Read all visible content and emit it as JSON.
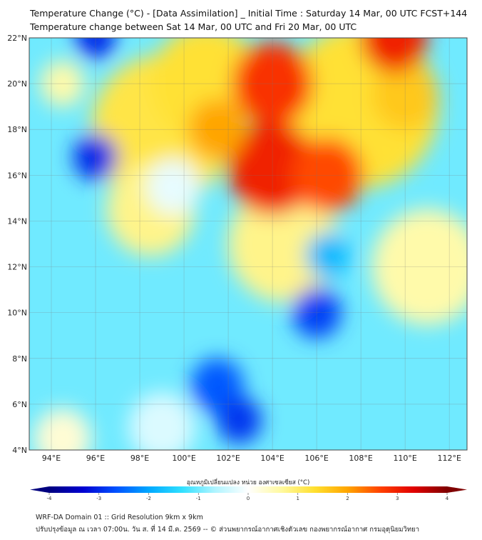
{
  "header": {
    "title": "Temperature Change (°C) - [Data Assimilation] _ Initial Time : Saturday 14 Mar, 00 UTC FCST+144",
    "subtitle": "Temperature change between Sat 14 Mar, 00 UTC and Fri 20 Mar, 00 UTC"
  },
  "chart_data": {
    "type": "heatmap",
    "title": "Temperature Change (°C) - [Data Assimilation] _ Initial Time : Saturday 14 Mar, 00 UTC FCST+144",
    "xlabel": "",
    "ylabel": "",
    "xlim": [
      93,
      112.8
    ],
    "ylim": [
      4,
      22
    ],
    "x_ticks": [
      "94°E",
      "96°E",
      "98°E",
      "100°E",
      "102°E",
      "104°E",
      "106°E",
      "108°E",
      "110°E",
      "112°E"
    ],
    "x_tick_values": [
      94,
      96,
      98,
      100,
      102,
      104,
      106,
      108,
      110,
      112
    ],
    "y_ticks": [
      "4°N",
      "6°N",
      "8°N",
      "10°N",
      "12°N",
      "14°N",
      "16°N",
      "18°N",
      "20°N",
      "22°N"
    ],
    "y_tick_values": [
      4,
      6,
      8,
      10,
      12,
      14,
      16,
      18,
      20,
      22
    ],
    "grid": true,
    "background_value": -1.0,
    "features": [
      {
        "lon": 99,
        "lat": 18,
        "value": 1.2,
        "r": 3.2
      },
      {
        "lon": 98.5,
        "lat": 14.5,
        "value": 0.8,
        "r": 2.0
      },
      {
        "lon": 101,
        "lat": 20,
        "value": 1.3,
        "r": 2.5
      },
      {
        "lon": 104.5,
        "lat": 13,
        "value": 0.8,
        "r": 2.5
      },
      {
        "lon": 108,
        "lat": 19,
        "value": 1.3,
        "r": 3.5
      },
      {
        "lon": 111,
        "lat": 12,
        "value": 0.6,
        "r": 2.5
      },
      {
        "lon": 110,
        "lat": 19.5,
        "value": 1.6,
        "r": 1.5
      },
      {
        "lon": 104,
        "lat": 20,
        "value": 2.8,
        "r": 1.8
      },
      {
        "lon": 104,
        "lat": 16.3,
        "value": 3.0,
        "r": 2.0
      },
      {
        "lon": 106.5,
        "lat": 16,
        "value": 2.6,
        "r": 1.6
      },
      {
        "lon": 101.5,
        "lat": 18,
        "value": 2.0,
        "r": 1.3
      },
      {
        "lon": 109.5,
        "lat": 22,
        "value": 3.0,
        "r": 1.5
      },
      {
        "lon": 99.5,
        "lat": 15.5,
        "value": -0.2,
        "r": 1.2
      },
      {
        "lon": 96,
        "lat": 16.8,
        "value": -3.0,
        "r": 1.0
      },
      {
        "lon": 96,
        "lat": 22,
        "value": -3.0,
        "r": 0.9
      },
      {
        "lon": 94.5,
        "lat": 20,
        "value": 0.6,
        "r": 1.0
      },
      {
        "lon": 106,
        "lat": 10,
        "value": -2.8,
        "r": 1.1
      },
      {
        "lon": 106.5,
        "lat": 12.5,
        "value": -1.8,
        "r": 1.0
      },
      {
        "lon": 101.5,
        "lat": 6.8,
        "value": -2.6,
        "r": 1.2
      },
      {
        "lon": 102.5,
        "lat": 5.3,
        "value": -2.9,
        "r": 1.0
      },
      {
        "lon": 99,
        "lat": 5,
        "value": -0.3,
        "r": 1.5
      },
      {
        "lon": 94.5,
        "lat": 4.5,
        "value": 0.3,
        "r": 1.3
      }
    ],
    "colorbar": {
      "label": "อุณหภูมิเปลี่ยนแปลง หน่วย องศาเซลเซียส (°C)",
      "ticks": [
        "-4",
        "-3",
        "-2",
        "-1",
        "0",
        "1",
        "2",
        "3",
        "4"
      ],
      "range": [
        -4,
        4
      ],
      "colors": [
        "#00007f",
        "#0000d0",
        "#0050ff",
        "#00a8ff",
        "#30e0ff",
        "#b0f4ff",
        "#ffffff",
        "#fff9a0",
        "#ffe030",
        "#ffa500",
        "#ff4000",
        "#e00000",
        "#800000"
      ]
    }
  },
  "footer": {
    "line1": "WRF-DA Domain 01 :: Grid Resolution 9km x 9km",
    "line2": "ปรับปรุงข้อมูล ณ เวลา 07:00น. วัน ส. ที่ 14 มี.ค. 2569 -- © ส่วนพยากรณ์อากาศเชิงตัวเลข กองพยากรณ์อากาศ กรมอุตุนิยมวิทยา"
  }
}
